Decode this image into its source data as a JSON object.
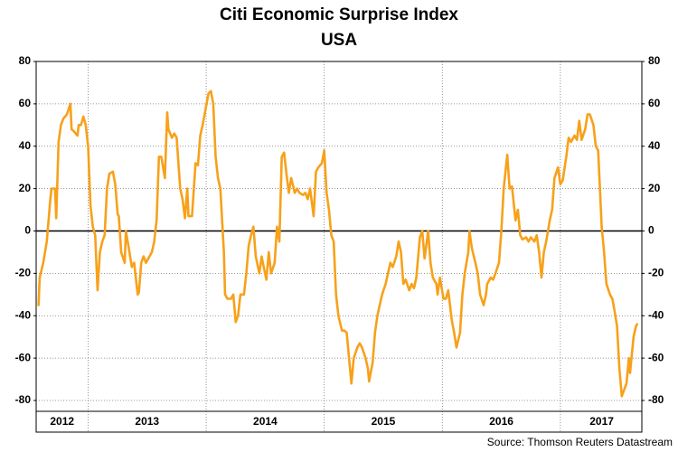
{
  "chart_data": {
    "type": "line",
    "title": "Citi Economic Surprise Index",
    "subtitle": "USA",
    "source": "Source: Thomson Reuters Datastream",
    "color": "#f7a11a",
    "grid": true,
    "x": [
      2012.58,
      2012.59,
      2012.62,
      2012.65,
      2012.68,
      2012.69,
      2012.72,
      2012.73,
      2012.75,
      2012.77,
      2012.79,
      2012.82,
      2012.85,
      2012.86,
      2012.88,
      2012.91,
      2012.92,
      2012.94,
      2012.96,
      2012.98,
      2013.0,
      2013.02,
      2013.04,
      2013.06,
      2013.08,
      2013.1,
      2013.12,
      2013.14,
      2013.16,
      2013.18,
      2013.21,
      2013.23,
      2013.25,
      2013.26,
      2013.28,
      2013.31,
      2013.32,
      2013.35,
      2013.37,
      2013.39,
      2013.42,
      2013.43,
      2013.45,
      2013.47,
      2013.49,
      2013.52,
      2013.54,
      2013.56,
      2013.58,
      2013.6,
      2013.62,
      2013.65,
      2013.67,
      2013.68,
      2013.71,
      2013.73,
      2013.75,
      2013.78,
      2013.8,
      2013.82,
      2013.84,
      2013.85,
      2013.88,
      2013.91,
      2013.93,
      2013.95,
      2013.97,
      2013.99,
      2014.02,
      2014.04,
      2014.06,
      2014.08,
      2014.1,
      2014.12,
      2014.15,
      2014.16,
      2014.18,
      2014.21,
      2014.23,
      2014.25,
      2014.27,
      2014.29,
      2014.32,
      2014.34,
      2014.36,
      2014.38,
      2014.4,
      2014.42,
      2014.45,
      2014.47,
      2014.48,
      2014.51,
      2014.53,
      2014.55,
      2014.58,
      2014.6,
      2014.62,
      2014.64,
      2014.66,
      2014.68,
      2014.7,
      2014.72,
      2014.75,
      2014.77,
      2014.79,
      2014.82,
      2014.84,
      2014.86,
      2014.88,
      2014.91,
      2014.93,
      2014.95,
      2014.98,
      2015.0,
      2015.02,
      2015.04,
      2015.06,
      2015.08,
      2015.1,
      2015.12,
      2015.15,
      2015.17,
      2015.19,
      2015.21,
      2015.23,
      2015.25,
      2015.28,
      2015.3,
      2015.32,
      2015.35,
      2015.37,
      2015.38,
      2015.41,
      2015.43,
      2015.45,
      2015.47,
      2015.49,
      2015.52,
      2015.54,
      2015.56,
      2015.58,
      2015.61,
      2015.63,
      2015.65,
      2015.67,
      2015.69,
      2015.72,
      2015.74,
      2015.76,
      2015.78,
      2015.81,
      2015.83,
      2015.85,
      2015.88,
      2015.9,
      2015.92,
      2015.95,
      2015.96,
      2015.98,
      2016.01,
      2016.03,
      2016.05,
      2016.08,
      2016.1,
      2016.12,
      2016.15,
      2016.17,
      2016.19,
      2016.22,
      2016.23,
      2016.25,
      2016.28,
      2016.3,
      2016.32,
      2016.35,
      2016.37,
      2016.38,
      2016.41,
      2016.43,
      2016.45,
      2016.48,
      2016.5,
      2016.52,
      2016.55,
      2016.57,
      2016.59,
      2016.62,
      2016.64,
      2016.66,
      2016.68,
      2016.71,
      2016.73,
      2016.75,
      2016.78,
      2016.8,
      2016.82,
      2016.84,
      2016.86,
      2016.88,
      2016.91,
      2016.93,
      2016.95,
      2016.98,
      2017.0,
      2017.02,
      2017.05,
      2017.07,
      2017.09,
      2017.12,
      2017.14,
      2017.16,
      2017.18,
      2017.21,
      2017.23,
      2017.25,
      2017.28,
      2017.3,
      2017.32,
      2017.35,
      2017.37,
      2017.39,
      2017.42,
      2017.44,
      2017.46,
      2017.48,
      2017.5,
      2017.52,
      2017.54,
      2017.56,
      2017.58,
      2017.59,
      2017.62,
      2017.64,
      2017.65
    ],
    "values": [
      -35,
      -22,
      -15,
      -5,
      15,
      20,
      20,
      6,
      42,
      50,
      53,
      55,
      60,
      48,
      47,
      45,
      50,
      50,
      54,
      50,
      40,
      12,
      2,
      -2,
      -28,
      -10,
      -5,
      -2,
      20,
      27,
      28,
      22,
      8,
      7,
      -10,
      -15,
      0,
      -10,
      -17,
      -15,
      -30,
      -29,
      -15,
      -12,
      -15,
      -12,
      -10,
      -5,
      5,
      35,
      35,
      25,
      56,
      48,
      44,
      46,
      44,
      20,
      15,
      6,
      20,
      7,
      7,
      32,
      31,
      45,
      50,
      56,
      65,
      66,
      60,
      35,
      25,
      20,
      -10,
      -30,
      -32,
      -32,
      -30,
      -43,
      -40,
      -30,
      -30,
      -20,
      -7,
      -2,
      2,
      -12,
      -20,
      -12,
      -15,
      -23,
      -10,
      -20,
      -15,
      2,
      -5,
      35,
      37,
      27,
      18,
      25,
      18,
      20,
      18,
      17,
      18,
      15,
      20,
      7,
      28,
      30,
      32,
      38,
      18,
      10,
      -2,
      -5,
      -30,
      -40,
      -47,
      -47,
      -48,
      -60,
      -72,
      -60,
      -55,
      -53,
      -55,
      -60,
      -65,
      -71,
      -62,
      -48,
      -40,
      -35,
      -30,
      -25,
      -20,
      -15,
      -17,
      -12,
      -5,
      -10,
      -25,
      -23,
      -28,
      -25,
      -27,
      -22,
      -3,
      0,
      -13,
      0,
      -15,
      -22,
      -25,
      -30,
      -22,
      -32,
      -32,
      -28,
      -42,
      -48,
      -55,
      -48,
      -30,
      -20,
      -10,
      0,
      -8,
      -15,
      -20,
      -30,
      -35,
      -30,
      -25,
      -22,
      -23,
      -20,
      -15,
      0,
      20,
      36,
      20,
      21,
      5,
      10,
      -2,
      -4,
      -3,
      -5,
      -3,
      -5,
      -2,
      -10,
      -22,
      -10,
      -5,
      5,
      10,
      25,
      30,
      22,
      24,
      35,
      44,
      42,
      45,
      43,
      52,
      43,
      48,
      55,
      55,
      50,
      40,
      38,
      2,
      -10,
      -25,
      -30,
      -32,
      -38,
      -45,
      -65,
      -78,
      -75,
      -72,
      -60,
      -67,
      -50,
      -45,
      -44
    ],
    "xlim": [
      2012.56,
      2017.69
    ],
    "xgrid": [
      2013,
      2014,
      2015,
      2016,
      2017
    ],
    "xticks": [
      {
        "value": 2012.78,
        "label": "2012"
      },
      {
        "value": 2013.5,
        "label": "2013"
      },
      {
        "value": 2014.5,
        "label": "2014"
      },
      {
        "value": 2015.5,
        "label": "2015"
      },
      {
        "value": 2016.5,
        "label": "2016"
      },
      {
        "value": 2017.35,
        "label": "2017"
      }
    ],
    "ylim": [
      -80,
      80
    ],
    "yticks": [
      -80,
      -60,
      -40,
      -20,
      0,
      20,
      40,
      60,
      80
    ],
    "y2lim": [
      -80,
      80
    ],
    "y2ticks": [
      -80,
      -60,
      -40,
      -20,
      0,
      20,
      40,
      60,
      80
    ]
  }
}
